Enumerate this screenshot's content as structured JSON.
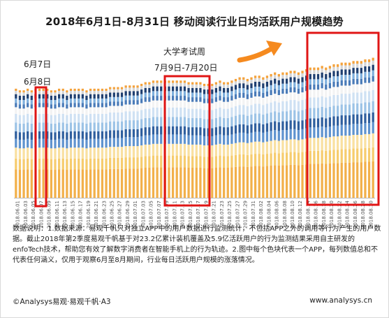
{
  "title": "2018年6月1日-8月31日 移动阅读行业日均活跃用户规模趋势",
  "annotations": {
    "june7": "6月7日",
    "june8": "6月8日",
    "exam_title": "大学考试周",
    "exam_range": "7月9日-7月20日"
  },
  "note": "数据说明：1.数据来源：易观千帆只对独立APP中的用户数据进行监测统计，不包括APP之外的调用等行为产生的用户数据。截止2018年第2季度易观千帆基于对23.2亿累计装机覆盖及5.9亿活跃用户的行为监测结果采用自主研发的enfoTech技术，帮助您有效了解数字消费者在智能手机上的行为轨迹。2.图中每个色块代表一个APP，每列数值总和不代表任何涵义，仅用于观察6月至8月期间，行业每日活跃用户规模的涨落情况。",
  "footer": {
    "left": "©Analysys易观·易观千帆·A3",
    "right": "www.analysys.cn"
  },
  "colors": {
    "segments": [
      "#f2b04a",
      "#f6cc6e",
      "#f9e0a0",
      "#5f93cf",
      "#2f5f9e",
      "#9cc3e6",
      "#cfe1f3",
      "#f3f3f3",
      "#4a7bb8",
      "#7fb0dd",
      "#1f3f70",
      "#d6d6d6",
      "#f4a23c"
    ],
    "highlight_box": "#e01515",
    "arrow": "#f58a1f"
  },
  "chart_data": {
    "type": "bar",
    "stacked": true,
    "title": "2018年6月1日-8月31日 移动阅读行业日均活跃用户规模趋势",
    "xlabel": "",
    "ylabel": "",
    "x_tick_labels": [
      "2018.06.01",
      "2018.06.03",
      "2018.06.05",
      "2018.06.07",
      "2018.06.09",
      "2018.06.11",
      "2018.06.13",
      "2018.06.15",
      "2018.06.17",
      "2018.06.19",
      "2018.06.21",
      "2018.06.23",
      "2018.06.25",
      "2018.06.27",
      "2018.06.29",
      "2018.07.01",
      "2018.07.03",
      "2018.07.05",
      "2018.07.07",
      "2018.07.09",
      "2018.07.11",
      "2018.07.13",
      "2018.07.15",
      "2018.07.17",
      "2018.07.19",
      "2018.07.21",
      "2018.07.23",
      "2018.07.25",
      "2018.07.27",
      "2018.07.29",
      "2018.07.31",
      "2018.08.02",
      "2018.08.04",
      "2018.08.06",
      "2018.08.08",
      "2018.08.10",
      "2018.08.12",
      "2018.08.14",
      "2018.08.16",
      "2018.08.18",
      "2018.08.20",
      "2018.08.22",
      "2018.08.24",
      "2018.08.26",
      "2018.08.28",
      "2018.08.30"
    ],
    "note": "No numeric y-axis is printed; each column's total is a relative index (0-100) of the bar height.",
    "totals": [
      67,
      66,
      66,
      67,
      66,
      67,
      67,
      67,
      67,
      66,
      66,
      67,
      67,
      66,
      67,
      67,
      67,
      67,
      66,
      67,
      67,
      67,
      67,
      67,
      68,
      68,
      68,
      68,
      69,
      69,
      69,
      69,
      70,
      71,
      71,
      72,
      72,
      72,
      72,
      72,
      72,
      72,
      72,
      72,
      71,
      71,
      71,
      71,
      70,
      70,
      70,
      71,
      72,
      71,
      71,
      72,
      73,
      74,
      74,
      73,
      74,
      75,
      75,
      74,
      75,
      76,
      77,
      76,
      77,
      77,
      78,
      78,
      77,
      78,
      79,
      80,
      80,
      80,
      81,
      80,
      81,
      82,
      82,
      83,
      83,
      83,
      84,
      84,
      84,
      85,
      85,
      86
    ],
    "segment_shares": [
      0.26,
      0.1,
      0.1,
      0.08,
      0.07,
      0.08,
      0.08,
      0.06,
      0.04,
      0.04,
      0.04,
      0.03,
      0.02
    ],
    "highlights": [
      {
        "label": "6月7日 / 6月8日",
        "from": "2018.06.07",
        "to": "2018.06.08"
      },
      {
        "label": "大学考试周 7月9日-7月20日",
        "from": "2018.07.09",
        "to": "2018.07.20"
      },
      {
        "label": "",
        "from": "2018.08.12",
        "to": "2018.08.31"
      }
    ],
    "trend_arrow": "up"
  }
}
